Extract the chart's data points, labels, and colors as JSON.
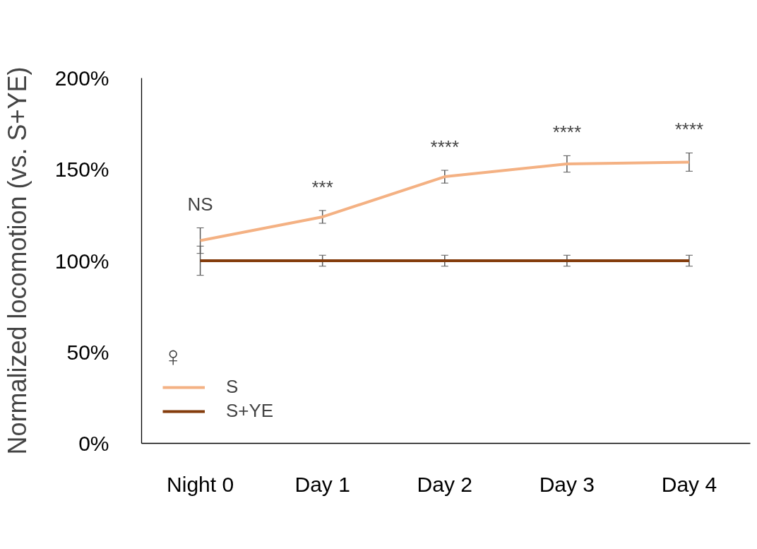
{
  "chart_data": {
    "type": "line",
    "ylabel": "Normalized locomotion (vs. S+YE)",
    "legend_title": "♀",
    "categories": [
      "Night 0",
      "Day 1",
      "Day 2",
      "Day 3",
      "Day 4"
    ],
    "series": [
      {
        "name": "S",
        "color": "#f4b183",
        "values": [
          111,
          124,
          146,
          153,
          154
        ],
        "errors": [
          7,
          3.5,
          3.5,
          4.5,
          5
        ]
      },
      {
        "name": "S+YE",
        "color": "#843c0c",
        "values": [
          100,
          100,
          100,
          100,
          100
        ],
        "errors": [
          8,
          3,
          3,
          3,
          3
        ]
      }
    ],
    "ylim": [
      0,
      200
    ],
    "yticks": [
      {
        "value": 0,
        "label": "0%"
      },
      {
        "value": 50,
        "label": "50%"
      },
      {
        "value": 100,
        "label": "100%"
      },
      {
        "value": 150,
        "label": "150%"
      },
      {
        "value": 200,
        "label": "200%"
      }
    ],
    "annotations": [
      "NS",
      "***",
      "****",
      "****",
      "****"
    ],
    "grid": false,
    "legend": "bottom left",
    "marker": "none",
    "line_style": "solid"
  }
}
